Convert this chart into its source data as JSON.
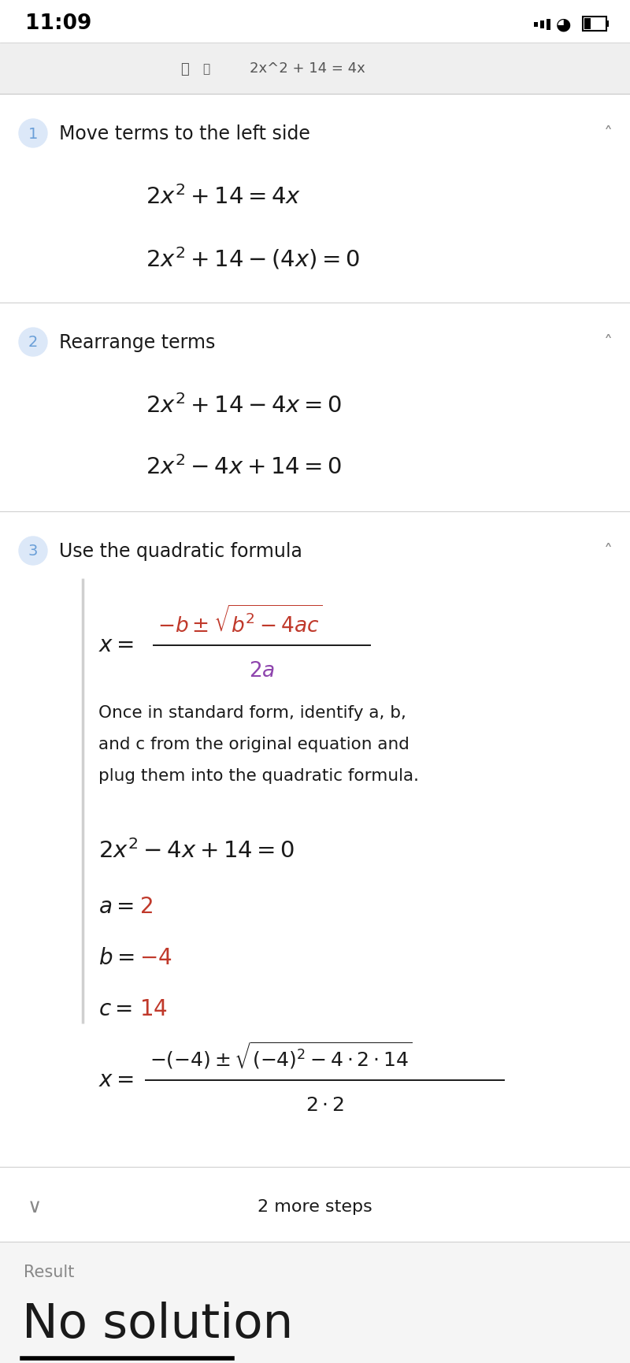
{
  "bg_color": "#f5f5f5",
  "white": "#ffffff",
  "black": "#000000",
  "gray_line": "#d0d0d0",
  "blue_circle_bg": "#dce8f8",
  "blue_circle_num": "#6a9fd8",
  "red_color": "#c0392b",
  "purple_color": "#8e44ad",
  "dark_text": "#1a1a1a",
  "gray_text": "#888888",
  "mid_gray": "#555555",
  "time": "11:09",
  "search_bar_text": "2x^2 + 14 = 4x",
  "step1_title": "Move terms to the left side",
  "step2_title": "Rearrange terms",
  "step3_title": "Use the quadratic formula",
  "result_label": "Result",
  "result_value": "No solution"
}
